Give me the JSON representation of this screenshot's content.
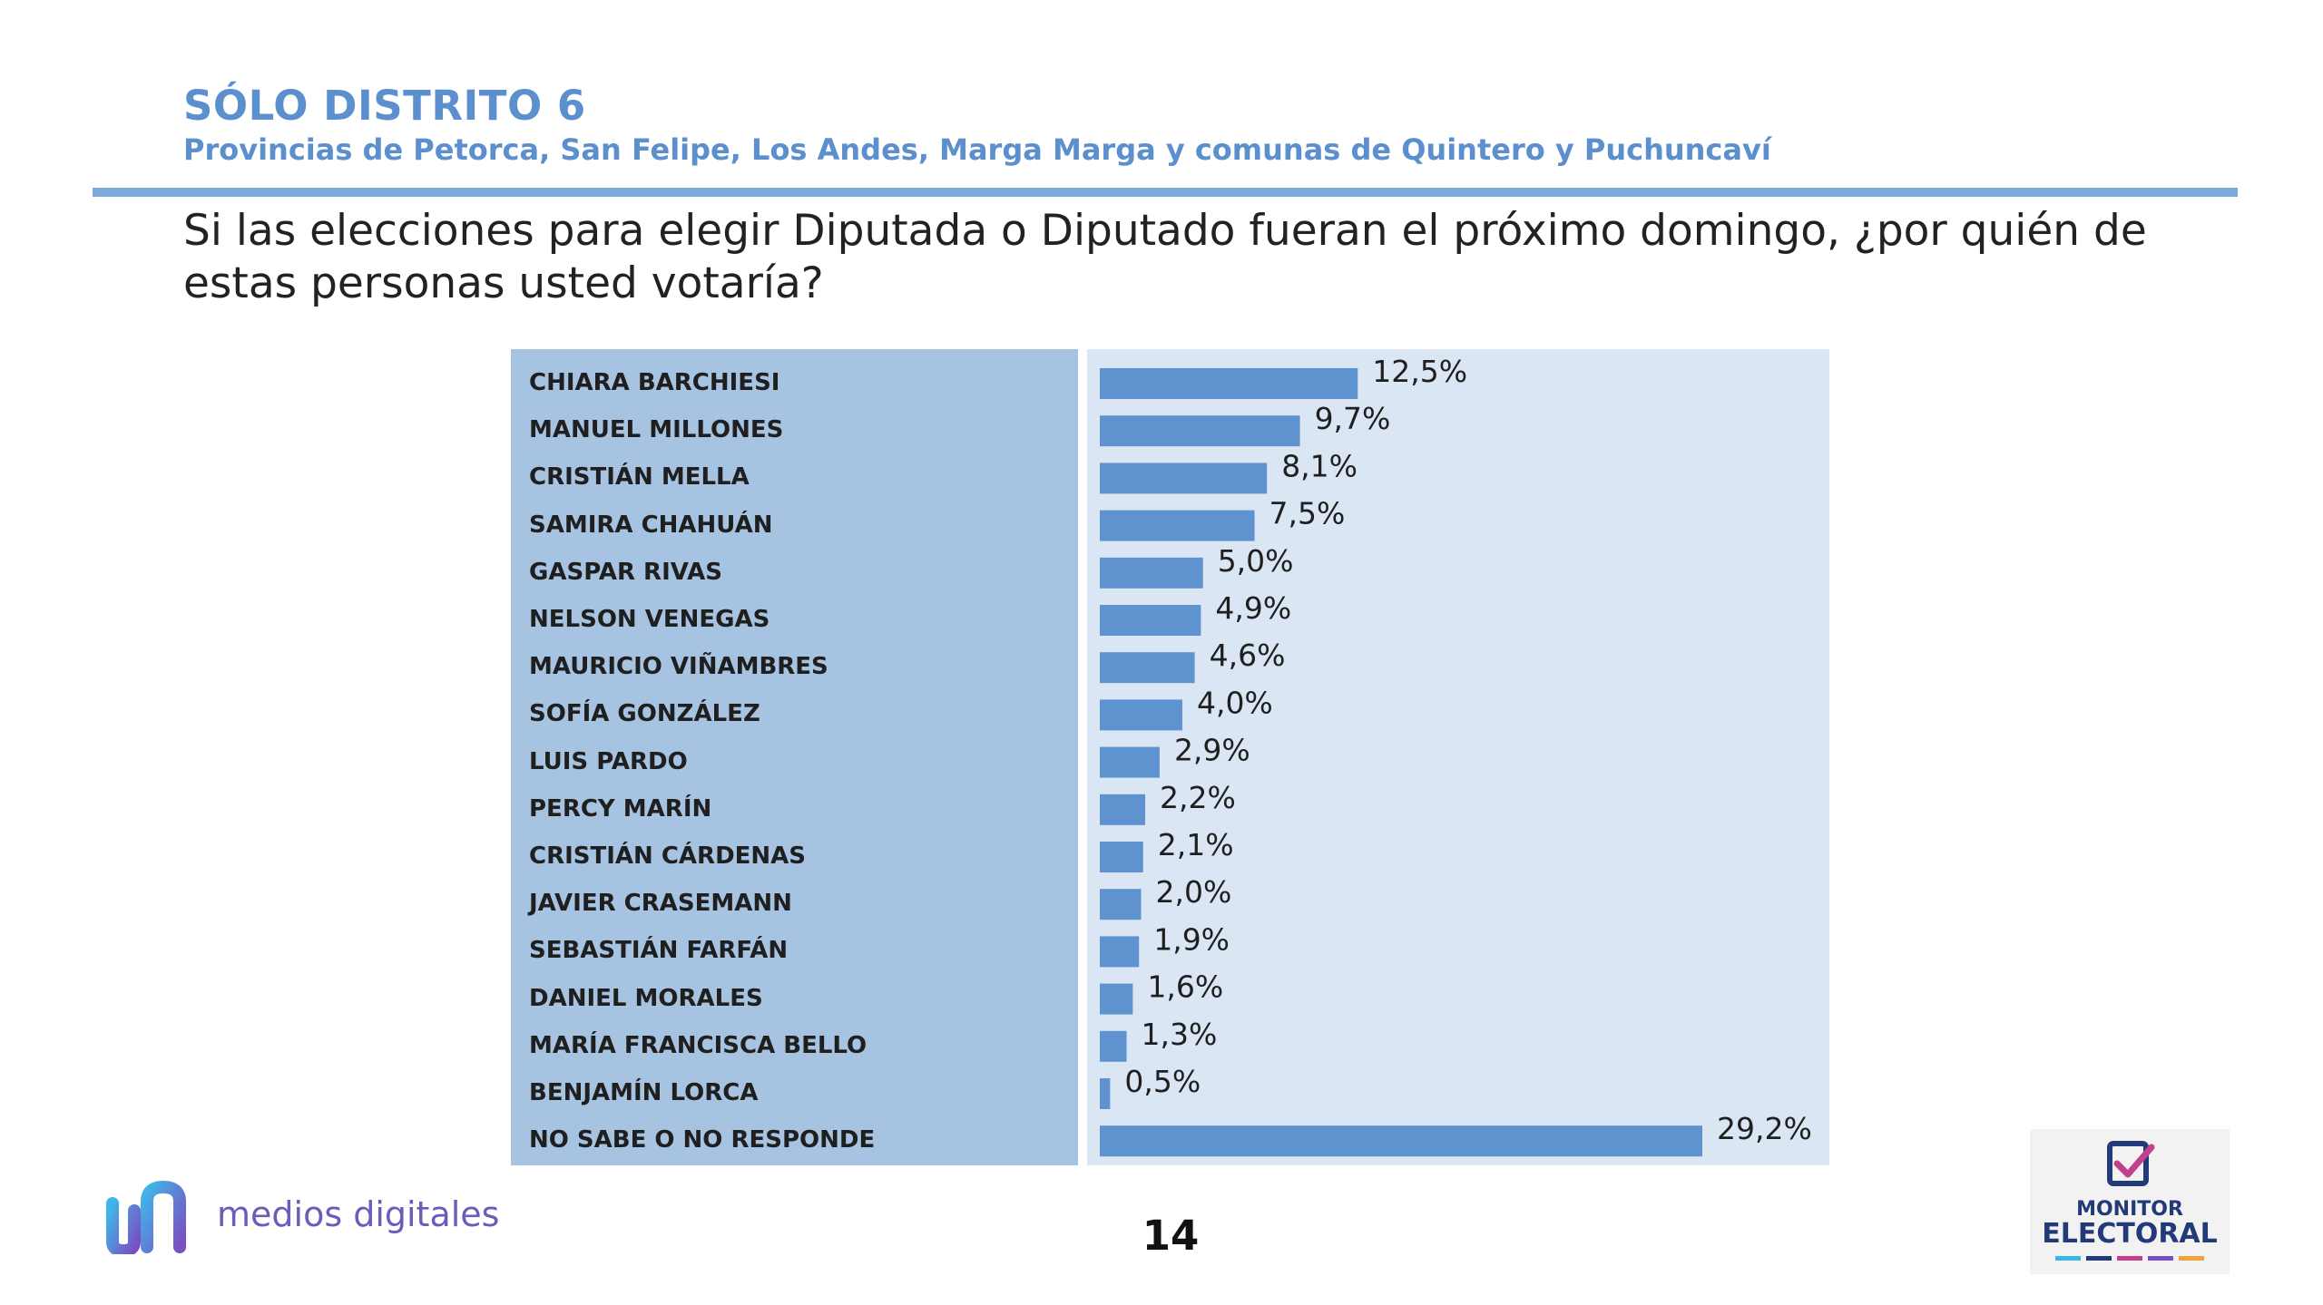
{
  "header": {
    "title": "SÓLO DISTRITO 6",
    "subtitle": "Provincias de Petorca, San Felipe, Los Andes, Marga Marga y comunas de Quintero y Puchuncaví",
    "question": "Si las elecciones para elegir Diputada o Diputado fueran el próximo domingo, ¿por quién de estas personas usted votaría?"
  },
  "chart_data": {
    "type": "bar",
    "orientation": "horizontal",
    "categories": [
      "CHIARA BARCHIESI",
      "MANUEL MILLONES",
      "CRISTIÁN MELLA",
      "SAMIRA CHAHUÁN",
      "GASPAR RIVAS",
      "NELSON VENEGAS",
      "MAURICIO VIÑAMBRES",
      "SOFÍA GONZÁLEZ",
      "LUIS PARDO",
      "PERCY MARÍN",
      "CRISTIÁN CÁRDENAS",
      "JAVIER CRASEMANN",
      "SEBASTIÁN FARFÁN",
      "DANIEL MORALES",
      "MARÍA FRANCISCA BELLO",
      "BENJAMÍN LORCA",
      "NO SABE O NO RESPONDE"
    ],
    "values": [
      12.5,
      9.7,
      8.1,
      7.5,
      5.0,
      4.9,
      4.6,
      4.0,
      2.9,
      2.2,
      2.1,
      2.0,
      1.9,
      1.6,
      1.3,
      0.5,
      29.2
    ],
    "value_labels": [
      "12,5%",
      "9,7%",
      "8,1%",
      "7,5%",
      "5,0%",
      "4,9%",
      "4,6%",
      "4,0%",
      "2,9%",
      "2,2%",
      "2,1%",
      "2,0%",
      "1,9%",
      "1,6%",
      "1,3%",
      "0,5%",
      "29,2%"
    ],
    "unit": "%",
    "xlim": [
      0,
      29.2
    ],
    "grid": false,
    "bar_color": "#5f93cf"
  },
  "footer": {
    "brand_name": "medios digitales",
    "page_number": "14",
    "logo_line1": "MONITOR",
    "logo_line2": "ELECTORAL"
  },
  "colors": {
    "accent": "#5b8fcd",
    "label_panel": "#a6c3e1",
    "plot_panel": "#dbe6f4"
  }
}
